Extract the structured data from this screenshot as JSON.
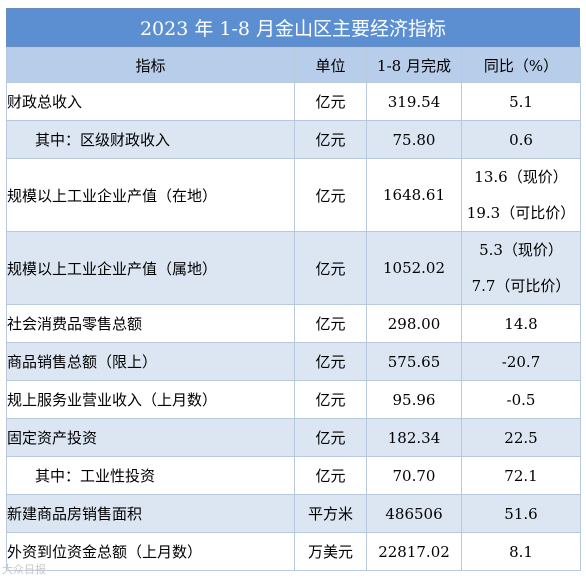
{
  "title": "2023 年 1-8 月金山区主要经济指标",
  "headers": {
    "indicator": "指标",
    "unit": "单位",
    "completed": "1-8 月完成",
    "yoy": "同比（%）"
  },
  "rows": [
    {
      "name": "财政总收入",
      "unit": "亿元",
      "value": "319.54",
      "yoy": "5.1"
    },
    {
      "name": "其中：区级财政收入",
      "unit": "亿元",
      "value": "75.80",
      "yoy": "0.6"
    },
    {
      "name": "规模以上工业企业产值（在地）",
      "unit": "亿元",
      "value": "1648.61",
      "yoy_line1": "13.6（现价）",
      "yoy_line2": "19.3（可比价）"
    },
    {
      "name": "规模以上工业企业产值（属地）",
      "unit": "亿元",
      "value": "1052.02",
      "yoy_line1": "5.3（现价）",
      "yoy_line2": "7.7（可比价）"
    },
    {
      "name": "社会消费品零售总额",
      "unit": "亿元",
      "value": "298.00",
      "yoy": "14.8"
    },
    {
      "name": "商品销售总额（限上）",
      "unit": "亿元",
      "value": "575.65",
      "yoy": "-20.7"
    },
    {
      "name": "规上服务业营业收入（上月数）",
      "unit": "亿元",
      "value": "95.96",
      "yoy": "-0.5"
    },
    {
      "name": "固定资产投资",
      "unit": "亿元",
      "value": "182.34",
      "yoy": "22.5"
    },
    {
      "name": "其中：工业性投资",
      "unit": "亿元",
      "value": "70.70",
      "yoy": "72.1"
    },
    {
      "name": "新建商品房销售面积",
      "unit": "平方米",
      "value": "486506",
      "yoy": "51.6"
    },
    {
      "name": "外资到位资金总额（上月数）",
      "unit": "万美元",
      "value": "22817.02",
      "yoy": "8.1"
    }
  ],
  "watermark": "大众日报"
}
